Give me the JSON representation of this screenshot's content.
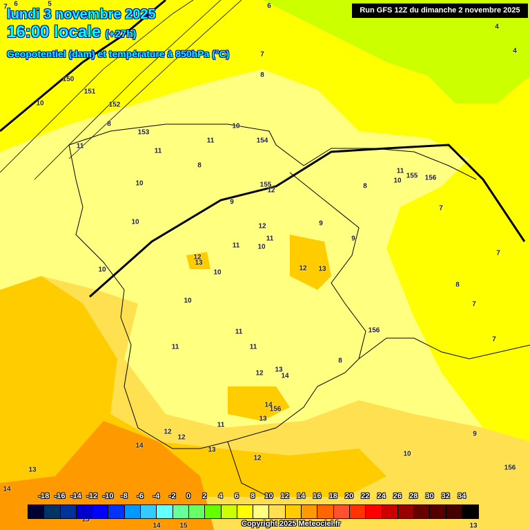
{
  "header": {
    "date": "lundi 3 novembre 2025",
    "time": "16:00 locale",
    "offset": "(+27h)",
    "parameter": "Geopotentiel (dam) et température à 850hPa (°C)",
    "run": "Run GFS 12Z du dimanche 2 novembre 2025"
  },
  "legend": {
    "ticks": [
      "-18",
      "-16",
      "-14",
      "-12",
      "-10",
      "-8",
      "-6",
      "-4",
      "-2",
      "0",
      "2",
      "4",
      "6",
      "8",
      "10",
      "12",
      "14",
      "16",
      "18",
      "20",
      "22",
      "24",
      "26",
      "28",
      "30",
      "32",
      "34"
    ],
    "colors": [
      "#000033",
      "#003366",
      "#003399",
      "#0000cc",
      "#0000ff",
      "#0033ff",
      "#0099ff",
      "#33ccff",
      "#66ffff",
      "#66ff99",
      "#66ff66",
      "#66ff00",
      "#ccff00",
      "#ffff00",
      "#ffff80",
      "#ffe050",
      "#ffcc00",
      "#ff9900",
      "#ff6600",
      "#ff5030",
      "#ff3300",
      "#ff0000",
      "#cc0000",
      "#990000",
      "#660000",
      "#550000",
      "#440000",
      "#000000"
    ]
  },
  "copyright": "Copyright 2025 Meteociel.fr",
  "map_labels": [
    "7",
    "6",
    "5",
    "6",
    "4",
    "4",
    "7",
    "8",
    "150",
    "151",
    "10",
    "152",
    "8",
    "153",
    "11",
    "11",
    "10",
    "11",
    "154",
    "8",
    "10",
    "155",
    "12",
    "9",
    "10",
    "11",
    "11",
    "10",
    "155",
    "156",
    "8",
    "7",
    "12",
    "13",
    "12",
    "10",
    "11",
    "9",
    "9",
    "12",
    "13",
    "10",
    "10",
    "7",
    "8",
    "7",
    "10",
    "11",
    "156",
    "11",
    "11",
    "7",
    "8",
    "12",
    "13",
    "14",
    "14",
    "156",
    "13",
    "12",
    "12",
    "11",
    "14",
    "13",
    "13",
    "12",
    "9",
    "10",
    "156",
    "14",
    "15",
    "14",
    "15",
    "13"
  ],
  "map_colors": {
    "green": "#ccff00",
    "yellow": "#ffff00",
    "light": "#ffff80",
    "pale_orange": "#ffe050",
    "orange": "#ffcc00",
    "dark_orange": "#ff9900"
  }
}
